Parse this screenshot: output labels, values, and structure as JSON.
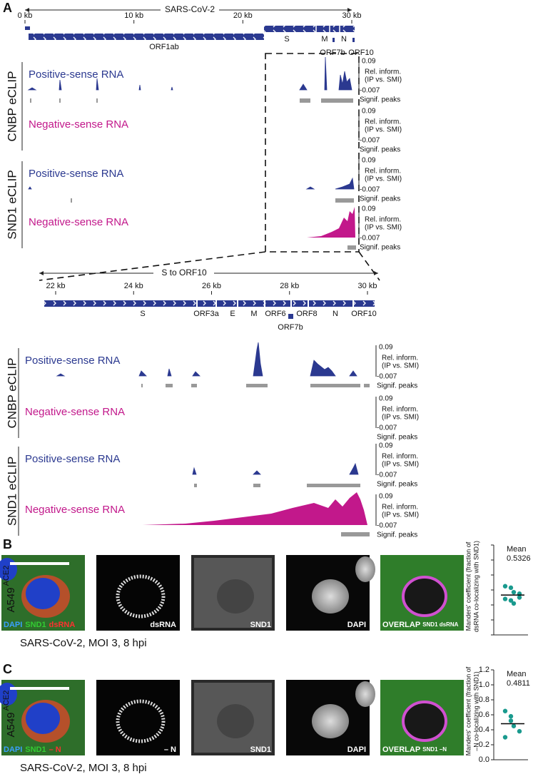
{
  "panel_a": {
    "label": "A",
    "genome_view": {
      "title": "SARS-CoV-2",
      "xlim": [
        0,
        30
      ],
      "ticks": [
        {
          "value": 0,
          "label": "0 kb"
        },
        {
          "value": 10,
          "label": "10 kb"
        },
        {
          "value": 20,
          "label": "20 kb"
        },
        {
          "value": 30,
          "label": "30 kb"
        }
      ],
      "genes": [
        "ORF1ab",
        "S",
        "M",
        "N",
        "ORF7b",
        "ORF10"
      ]
    },
    "zoom_view": {
      "title": "S to ORF10",
      "xlim": [
        22,
        30
      ],
      "ticks": [
        {
          "value": 22,
          "label": "22 kb"
        },
        {
          "value": 24,
          "label": "24 kb"
        },
        {
          "value": 26,
          "label": "26 kb"
        },
        {
          "value": 28,
          "label": "28 kb"
        },
        {
          "value": 30,
          "label": "30 kb"
        }
      ],
      "genes": [
        "S",
        "ORF3a",
        "E",
        "M",
        "ORF6",
        "ORF8",
        "N",
        "ORF10",
        "ORF7b"
      ]
    },
    "groups": [
      {
        "name": "CNBP eCLIP",
        "tracks": [
          "Positive-sense RNA",
          "Negative-sense RNA"
        ]
      },
      {
        "name": "SND1 eCLIP",
        "tracks": [
          "Positive-sense RNA",
          "Negative-sense RNA"
        ]
      }
    ],
    "scale": {
      "max": 0.09,
      "min": -0.007,
      "label": "Rel. inform.",
      "sublabel": "(IP vs. SMI)",
      "peaks_label": "Signif. peaks"
    }
  },
  "panel_b": {
    "label": "B",
    "cell_line": "A549",
    "superscript": "ACE2",
    "merge_labels": [
      "DAPI",
      "SND1",
      "dsRNA"
    ],
    "channel_labels": [
      "dsRNA",
      "SND1",
      "DAPI"
    ],
    "overlap_label": "OVERLAP",
    "overlap_sublabel": "SND1 dsRNA",
    "caption": "SARS-CoV-2, MOI 3, 8 hpi",
    "chart_data": {
      "type": "strip",
      "y_label": [
        "Manders' coefficient (fraction of",
        "dsRNA co-localizing with SND1)"
      ],
      "mean_label": "Mean",
      "mean": 0.5326,
      "values": [
        0.65,
        0.63,
        0.57,
        0.55,
        0.48,
        0.46,
        0.42,
        0.5
      ],
      "color": "#1a9a8e",
      "ylim": [
        0,
        1.2
      ],
      "yticks": [
        0,
        0.2,
        0.4,
        0.6,
        0.8,
        1,
        1.2
      ],
      "show_tick_labels": false
    }
  },
  "panel_c": {
    "label": "C",
    "cell_line": "A549",
    "superscript": "ACE2",
    "merge_labels": [
      "DAPI",
      "SND1",
      "– N"
    ],
    "channel_labels": [
      "– N",
      "SND1",
      "DAPI"
    ],
    "overlap_label": "OVERLAP",
    "overlap_sublabel": "SND1 –N",
    "caption": "SARS-CoV-2, MOI 3, 8 hpi",
    "chart_data": {
      "type": "strip",
      "y_label": [
        "Manders' coefficient (fraction of",
        "–N co-localizing with SND1)"
      ],
      "mean_label": "Mean",
      "mean": 0.4811,
      "values": [
        0.65,
        0.58,
        0.45,
        0.38,
        0.3,
        0.52
      ],
      "color": "#1a9a8e",
      "ylim": [
        0,
        1.2
      ],
      "yticks": [
        {
          "value": 0,
          "label": "0.0"
        },
        0.2,
        0.4,
        0.6,
        0.8,
        {
          "value": 1,
          "label": "1.0"
        },
        1.2
      ],
      "show_tick_labels": true
    }
  }
}
